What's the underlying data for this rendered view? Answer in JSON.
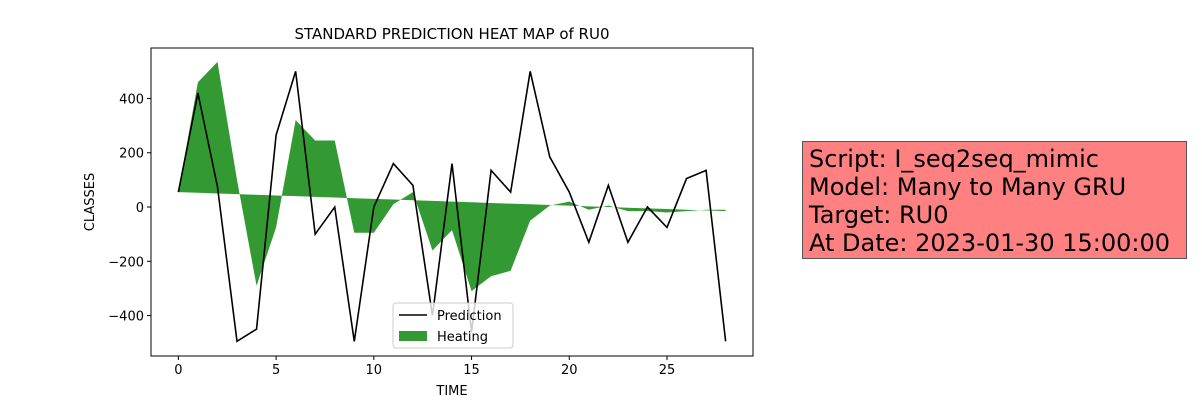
{
  "chart_data": {
    "type": "line",
    "title": "STANDARD PREDICTION HEAT MAP of RU0",
    "xlabel": "TIME",
    "ylabel": "CLASSES",
    "x": [
      0,
      1,
      2,
      3,
      4,
      5,
      6,
      7,
      8,
      9,
      10,
      11,
      12,
      13,
      14,
      15,
      16,
      17,
      18,
      19,
      20,
      21,
      22,
      23,
      24,
      25,
      26,
      27,
      28
    ],
    "series": [
      {
        "name": "Prediction",
        "color": "#000000",
        "values": [
          55,
          420,
          75,
          -495,
          -450,
          265,
          500,
          -100,
          0,
          -495,
          0,
          160,
          80,
          -400,
          160,
          -460,
          135,
          55,
          500,
          185,
          55,
          -130,
          80,
          -130,
          0,
          -75,
          105,
          135,
          -495
        ]
      },
      {
        "name": "Heating",
        "color": "#008000",
        "kind": "fill",
        "values": [
          55,
          460,
          535,
          100,
          -290,
          -75,
          320,
          245,
          245,
          -95,
          -95,
          10,
          55,
          -160,
          -85,
          -310,
          -255,
          -235,
          -50,
          5,
          20,
          -10,
          5,
          -15,
          -15,
          -20,
          -15,
          -10,
          -10
        ],
        "base": [
          55,
          52.5,
          50,
          47.5,
          45,
          42.5,
          40,
          37.5,
          35,
          32.5,
          30,
          27.5,
          25,
          22.5,
          20,
          17.5,
          15,
          12.5,
          10,
          7.5,
          5,
          2.5,
          0,
          -2.5,
          -5,
          -7.5,
          -10,
          -12.5,
          -15
        ]
      }
    ],
    "xlim": [
      -1.4,
      29.4
    ],
    "xticks": [
      0,
      5,
      10,
      15,
      20,
      25
    ],
    "ylim": [
      -549,
      586
    ],
    "yticks": [
      {
        "value": -400,
        "label": "−400"
      },
      {
        "value": -200,
        "label": "−200"
      },
      0,
      200,
      400
    ],
    "legend": "lower center",
    "annotation_lines": [
      "Script: I_seq2seq_mimic",
      "Model: Many to Many GRU",
      "Target: RU0",
      "At Date: 2023-01-30 15:00:00"
    ]
  }
}
